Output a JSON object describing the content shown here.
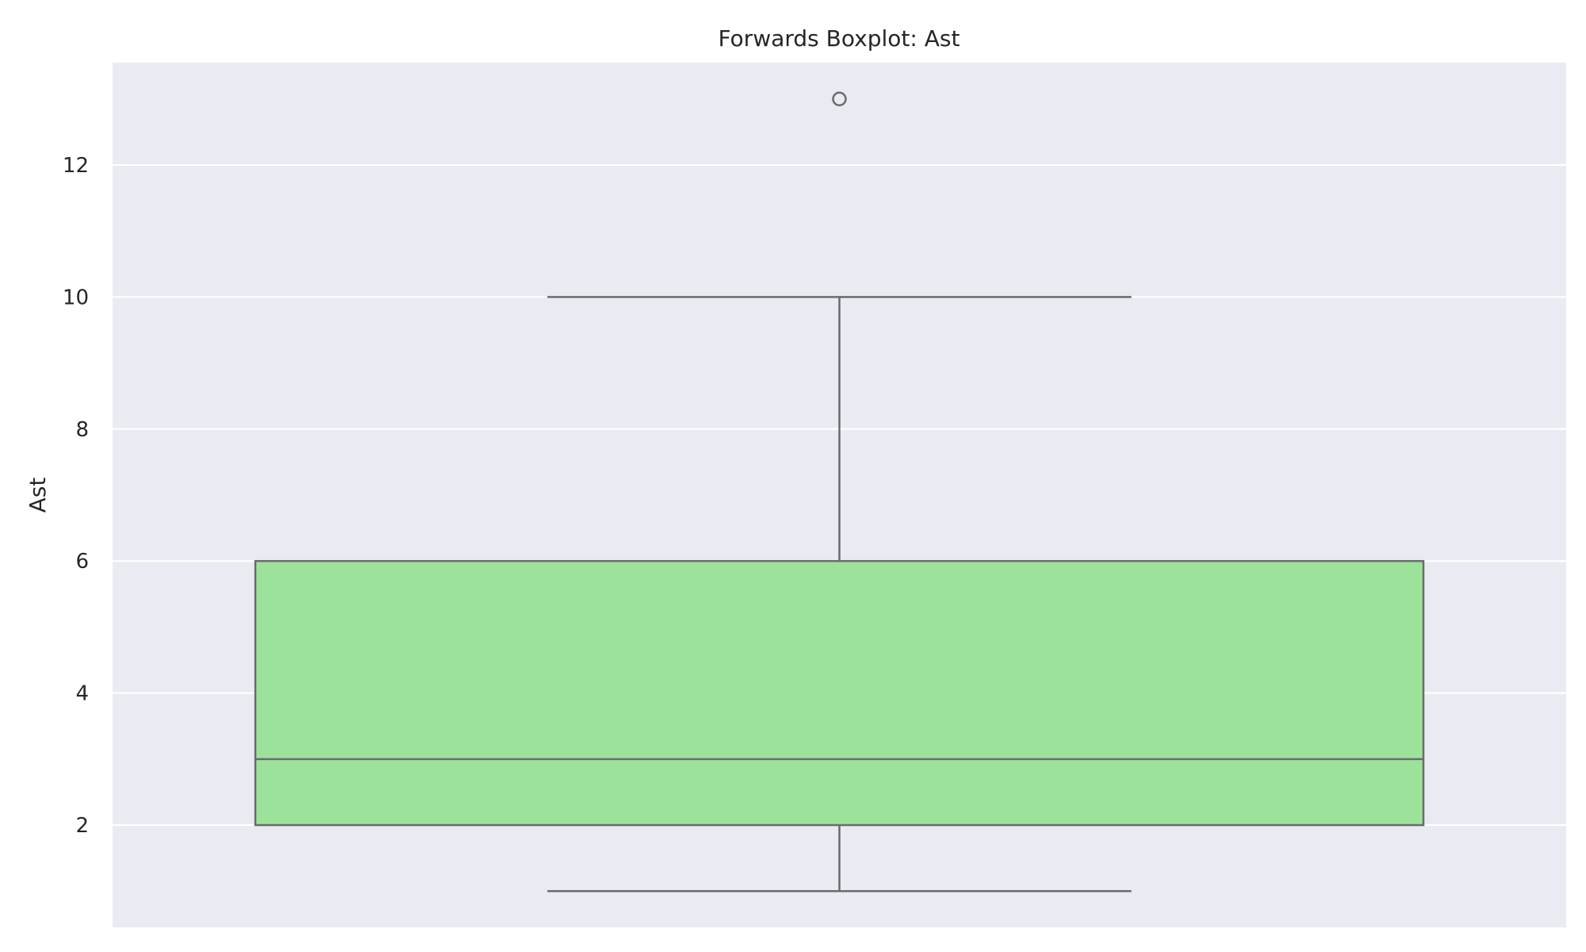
{
  "chart_data": {
    "type": "box",
    "title": "Forwards Boxplot: Ast",
    "xlabel": "",
    "ylabel": "Ast",
    "ylim": [
      0.45,
      13.55
    ],
    "yticks": [
      2,
      4,
      6,
      8,
      10,
      12
    ],
    "ytick_labels": [
      "2",
      "4",
      "6",
      "8",
      "10",
      "12"
    ],
    "grid": true,
    "box": {
      "whisker_low": 1,
      "q1": 2,
      "median": 3,
      "q3": 6,
      "whisker_high": 10,
      "outliers": [
        13
      ]
    },
    "colors": {
      "plot_background": "#eaeaf2",
      "grid": "#ffffff",
      "box_fill": "#9de29b",
      "box_line": "#6b6b6b"
    }
  }
}
